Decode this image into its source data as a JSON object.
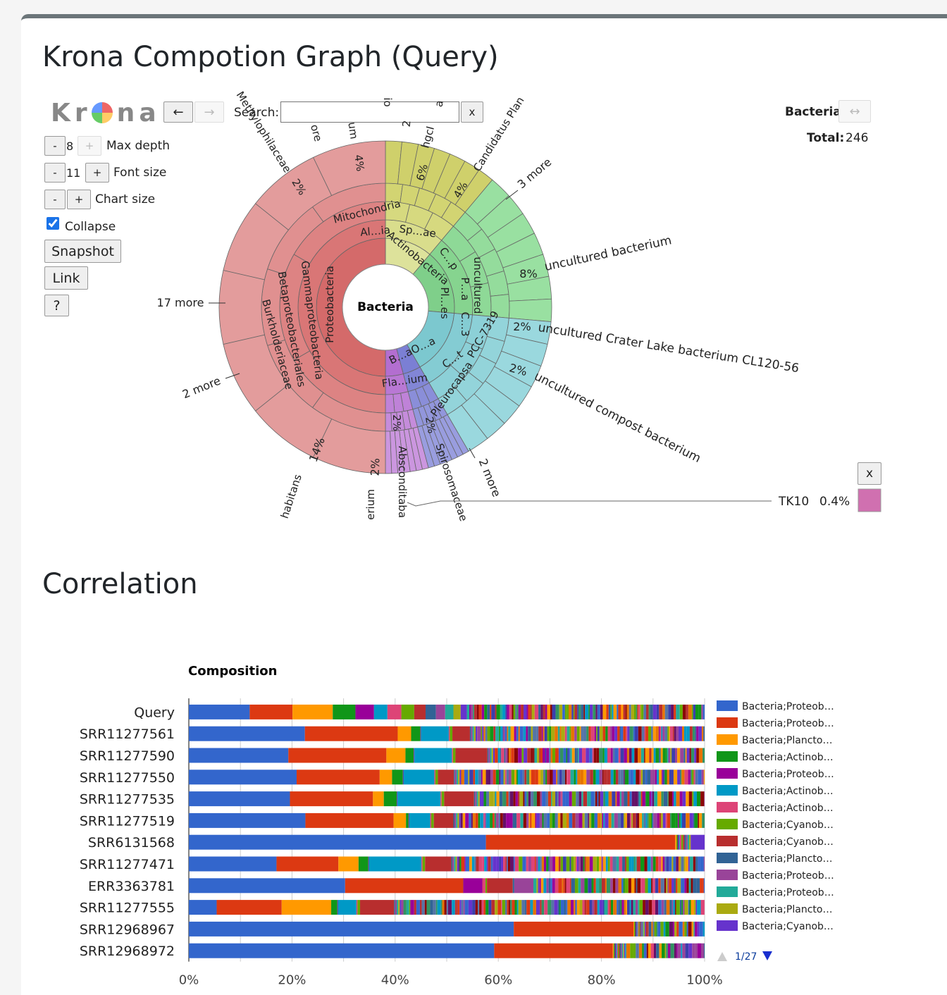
{
  "page": {
    "title": "Krona Compotion Graph (Query)",
    "section2_title": "Correlation"
  },
  "krona": {
    "logo_letters": [
      "K",
      "r",
      "n",
      "a"
    ],
    "back_label": "←",
    "forward_label": "→",
    "search_label": "Search:",
    "search_value": "",
    "search_clear": "x",
    "max_depth": {
      "minus": "-",
      "value": "8",
      "plus": "+",
      "label": "Max depth"
    },
    "font_size": {
      "minus": "-",
      "value": "11",
      "plus": "+",
      "label": "Font size"
    },
    "chart_size": {
      "minus": "-",
      "plus": "+",
      "label": "Chart size"
    },
    "collapse_label": "Collapse",
    "collapse_checked": true,
    "snapshot_label": "Snapshot",
    "link_label": "Link",
    "help_label": "?",
    "focus_name": "Bacteria",
    "focus_swap": "↔",
    "total_label": "Total:",
    "total_value": "246",
    "center_label": "Bacteria",
    "selected_name": "TK10",
    "selected_pct": "0.4%",
    "selected_close": "x",
    "selected_color": "#d070b0",
    "ring_labels": {
      "proteobacteria": "Proteobacteria",
      "gammaproteobacteria": "Gammaproteobacteria",
      "betaproteobacteriales": "Betaproteobacteriales",
      "burkholderiaceae": "Burkholderiaceae",
      "mitochondria": "Mitochondria",
      "alia": "Al…ia",
      "spae": "Sp…ae",
      "actinobacteria": "Actinobacteria",
      "cp": "C…p",
      "ples": "Pl…es",
      "pa": "P…a",
      "c3": "C…3",
      "uncultured": "uncultured",
      "pcc": "PCC-7319",
      "bao": "B…aO…a",
      "ct": "C…t",
      "pleurocapsa": "Pleurocapsa",
      "flaium": "Fla…ium",
      "absconditaba": "Absconditaba",
      "spirosomaceae": "Spirosomaceae",
      "methylophilaceae": "Methylophilaceae",
      "candidatus": "Candidatus Plan",
      "hgci": "hgcI",
      "ore": "ore",
      "um": "um",
      "io": "io",
      "two": "2",
      "a_cut": "a",
      "habitans": "habitans",
      "erium": "erium"
    },
    "pct_labels": [
      "2%",
      "4%",
      "6%",
      "4%",
      "8%",
      "2%",
      "2%",
      "14%",
      "2%",
      "2%",
      "2%"
    ],
    "outer_labels": {
      "more3": "3 more",
      "unc_bact": "uncultured bacterium",
      "unc_crater": "uncultured Crater Lake bacterium CL120-56",
      "unc_compost": "uncultured compost bacterium",
      "more2a": "2 more",
      "more17": "17 more",
      "more2b": "2 more"
    }
  },
  "chart_data": {
    "type": "bar",
    "title": "Composition",
    "stacked": true,
    "orientation": "horizontal",
    "xlim": [
      0,
      100
    ],
    "x_ticks": [
      "0%",
      "20%",
      "40%",
      "60%",
      "80%",
      "100%"
    ],
    "categories": [
      "Query",
      "SRR11277561",
      "SRR11277590",
      "SRR11277550",
      "SRR11277535",
      "SRR11277519",
      "SRR6131568",
      "SRR11277471",
      "ERR3363781",
      "SRR11277555",
      "SRR12968967",
      "SRR12968972"
    ],
    "series": [
      {
        "name": "Bacteria;Proteob…",
        "color": "#3366cc",
        "values": [
          11.8,
          22.5,
          19.3,
          20.9,
          19.6,
          22.6,
          57.6,
          17.0,
          30.3,
          5.4,
          63.0,
          59.2
        ]
      },
      {
        "name": "Bacteria;Proteob…",
        "color": "#dc3912",
        "values": [
          8.3,
          18.0,
          19.0,
          16.1,
          16.1,
          17.1,
          36.7,
          12.0,
          22.9,
          12.6,
          23.2,
          23.0
        ]
      },
      {
        "name": "Bacteria;Plancto…",
        "color": "#ff9900",
        "values": [
          7.8,
          2.6,
          3.7,
          2.4,
          2.1,
          2.4,
          0.3,
          3.9,
          0.0,
          9.6,
          0.2,
          0.2
        ]
      },
      {
        "name": "Bacteria;Actinob…",
        "color": "#109618",
        "values": [
          4.4,
          1.8,
          1.6,
          2.1,
          2.5,
          0.5,
          0.2,
          1.9,
          0.0,
          1.2,
          0.2,
          0.2
        ]
      },
      {
        "name": "Bacteria;Proteob…",
        "color": "#990099",
        "values": [
          3.6,
          0.1,
          0.1,
          0.1,
          0.1,
          0.1,
          0.2,
          0.1,
          3.7,
          0.1,
          0.2,
          0.2
        ]
      },
      {
        "name": "Bacteria;Actinob…",
        "color": "#0099c6",
        "values": [
          2.6,
          5.4,
          7.3,
          6.0,
          8.4,
          4.1,
          0.2,
          10.2,
          0.0,
          3.6,
          0.2,
          0.2
        ]
      },
      {
        "name": "Bacteria;Actinob…",
        "color": "#dd4477",
        "values": [
          2.7,
          0.2,
          0.2,
          0.2,
          0.2,
          0.2,
          0.3,
          0.2,
          0.6,
          0.2,
          0.2,
          0.2
        ]
      },
      {
        "name": "Bacteria;Cyanob…",
        "color": "#66aa00",
        "values": [
          2.5,
          0.5,
          0.5,
          0.5,
          0.5,
          0.5,
          0.3,
          0.5,
          0.3,
          0.5,
          0.2,
          0.2
        ]
      },
      {
        "name": "Bacteria;Cyanob…",
        "color": "#b82e2e",
        "values": [
          2.2,
          3.4,
          6.2,
          3.1,
          5.8,
          3.8,
          0.3,
          5.1,
          5.0,
          6.6,
          0.2,
          0.2
        ]
      },
      {
        "name": "Bacteria;Plancto…",
        "color": "#316395",
        "values": [
          2.0,
          0.2,
          0.2,
          0.2,
          0.2,
          0.2,
          0.3,
          0.2,
          0.3,
          0.2,
          0.2,
          0.2
        ]
      },
      {
        "name": "Bacteria;Proteob…",
        "color": "#994499",
        "values": [
          1.8,
          0.3,
          0.3,
          0.3,
          0.3,
          0.3,
          0.3,
          0.3,
          3.7,
          0.3,
          0.2,
          0.2
        ]
      },
      {
        "name": "Bacteria;Proteob…",
        "color": "#22aa99",
        "values": [
          1.6,
          0.3,
          0.3,
          0.3,
          0.3,
          0.3,
          0.3,
          0.3,
          0.6,
          0.3,
          0.2,
          0.2
        ]
      },
      {
        "name": "Bacteria;Plancto…",
        "color": "#aaaa11",
        "values": [
          1.4,
          0.3,
          0.3,
          0.3,
          0.3,
          0.3,
          0.3,
          0.3,
          0.3,
          0.3,
          0.2,
          0.2
        ]
      },
      {
        "name": "Bacteria;Cyanob…",
        "color": "#6633cc",
        "values": [
          1.2,
          0.3,
          0.3,
          0.3,
          0.3,
          0.3,
          2.7,
          0.3,
          0.3,
          0.3,
          0.2,
          0.2
        ]
      }
    ],
    "legend_position": "right",
    "legend_page": "1/27",
    "grid": true
  }
}
